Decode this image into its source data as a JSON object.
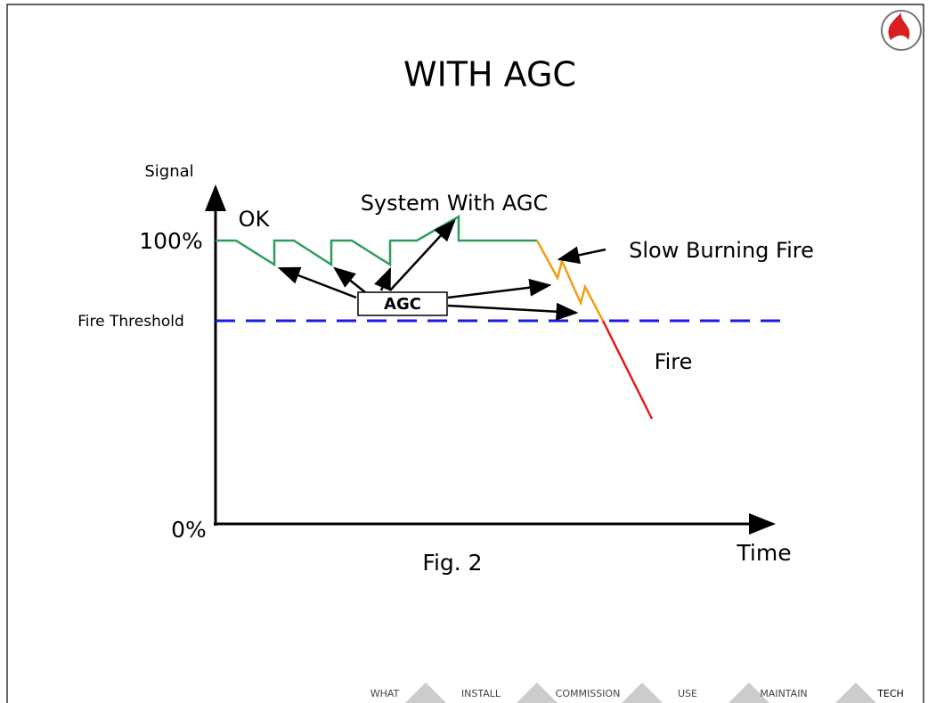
{
  "title": "WITH AGC",
  "axes": {
    "y_label": "Signal",
    "x_label": "Time",
    "top": "100%",
    "bottom": "0%",
    "threshold": "Fire Threshold"
  },
  "annotations": {
    "ok": "OK",
    "system": "System With AGC",
    "slow": "Slow Burning Fire",
    "fire": "Fire",
    "agc": "AGC"
  },
  "caption": "Fig. 2",
  "nav": [
    "WHAT",
    "INSTALL",
    "COMMISSION",
    "USE",
    "MAINTAIN",
    "TECH"
  ]
}
